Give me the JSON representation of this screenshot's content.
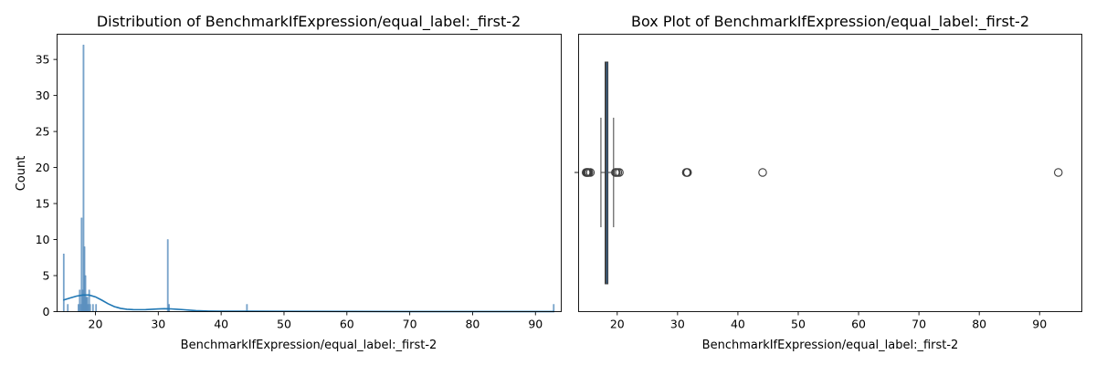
{
  "chart_data": [
    {
      "type": "histogram",
      "title": "Distribution of BenchmarkIfExpression/equal_label:_first-2",
      "xlabel": "BenchmarkIfExpression/equal_label:_first-2",
      "ylabel": "Count",
      "xlim": [
        13.9,
        94.1
      ],
      "ylim": [
        0,
        38.5
      ],
      "xticks": [
        20,
        30,
        40,
        50,
        60,
        70,
        80,
        90
      ],
      "yticks": [
        0,
        5,
        10,
        15,
        20,
        25,
        30,
        35
      ],
      "bar_color": "#4a84b8",
      "kde_color": "#1f77b4",
      "bin_width": 0.16,
      "bins": [
        {
          "x": 14.95,
          "count": 8
        },
        {
          "x": 15.6,
          "count": 1
        },
        {
          "x": 17.3,
          "count": 1
        },
        {
          "x": 17.5,
          "count": 3
        },
        {
          "x": 17.65,
          "count": 1
        },
        {
          "x": 17.8,
          "count": 13
        },
        {
          "x": 17.95,
          "count": 3
        },
        {
          "x": 18.1,
          "count": 37
        },
        {
          "x": 18.25,
          "count": 9
        },
        {
          "x": 18.4,
          "count": 5
        },
        {
          "x": 18.55,
          "count": 2
        },
        {
          "x": 18.7,
          "count": 2
        },
        {
          "x": 18.85,
          "count": 1
        },
        {
          "x": 19.0,
          "count": 3
        },
        {
          "x": 19.15,
          "count": 1
        },
        {
          "x": 19.6,
          "count": 1
        },
        {
          "x": 20.1,
          "count": 1
        },
        {
          "x": 31.5,
          "count": 10
        },
        {
          "x": 31.7,
          "count": 1
        },
        {
          "x": 44.1,
          "count": 1
        },
        {
          "x": 92.9,
          "count": 1
        }
      ],
      "kde": {
        "x": [
          14.9,
          16,
          17,
          18,
          19,
          20,
          21,
          22,
          23,
          24,
          25,
          26,
          27,
          28,
          29,
          30,
          31,
          32,
          33,
          34,
          35,
          36,
          38,
          40,
          45,
          50,
          60,
          70,
          80,
          90,
          93
        ],
        "y": [
          1.6,
          1.9,
          2.15,
          2.3,
          2.3,
          2.05,
          1.6,
          1.1,
          0.7,
          0.45,
          0.32,
          0.28,
          0.27,
          0.28,
          0.33,
          0.37,
          0.4,
          0.38,
          0.33,
          0.27,
          0.2,
          0.14,
          0.08,
          0.05,
          0.06,
          0.04,
          0.02,
          0.01,
          0.01,
          0.01,
          0.01
        ]
      }
    },
    {
      "type": "box",
      "title": "Box Plot of BenchmarkIfExpression/equal_label:_first-2",
      "xlabel": "BenchmarkIfExpression/equal_label:_first-2",
      "xlim": [
        13.6,
        97.0
      ],
      "xticks": [
        20,
        30,
        40,
        50,
        60,
        70,
        80,
        90
      ],
      "box_color": "#3a6fa5",
      "whisker_low": 17.3,
      "q1": 18.0,
      "median": 18.15,
      "q3": 18.4,
      "whisker_high": 19.4,
      "outliers": [
        14.85,
        14.95,
        15.05,
        15.15,
        15.3,
        15.55,
        19.7,
        19.85,
        20.1,
        20.35,
        31.45,
        31.55,
        31.65,
        44.1,
        93.1
      ]
    }
  ]
}
